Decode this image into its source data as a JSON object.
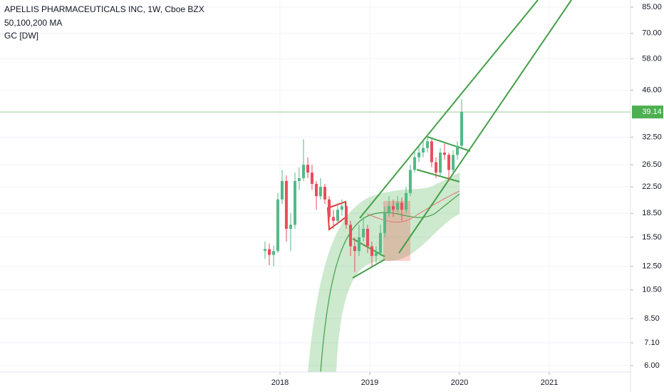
{
  "chart_data": {
    "type": "candlestick",
    "title": "APELLIS PHARMACEUTICALS INC, 1W, Cboe BZX",
    "indicators": [
      "50,100,200 MA",
      "GC [DW]"
    ],
    "log_scale": true,
    "grid": true,
    "up_color": "#53b987",
    "down_color": "#eb4d5c",
    "xlim": [
      2014.881,
      2021.905
    ],
    "xticks": [
      2018,
      2019,
      2020,
      2021
    ],
    "ylim": [
      5.72,
      89.6
    ],
    "yticks": [
      {
        "value": 85,
        "label": "85.00"
      },
      {
        "value": 70,
        "label": "70.00"
      },
      {
        "value": 58,
        "label": "58.00"
      },
      {
        "value": 46,
        "label": "46.00"
      },
      {
        "value": 32.5,
        "label": "32.50"
      },
      {
        "value": 26.5,
        "label": "26.50"
      },
      {
        "value": 22.5,
        "label": "22.50"
      },
      {
        "value": 18.5,
        "label": "18.50"
      },
      {
        "value": 15.5,
        "label": "15.50"
      },
      {
        "value": 12.5,
        "label": "12.50"
      },
      {
        "value": 10.5,
        "label": "10.50"
      },
      {
        "value": 8.5,
        "label": "8.50"
      },
      {
        "value": 7.1,
        "label": "7.10"
      },
      {
        "value": 6,
        "label": "6.00"
      }
    ],
    "last_price": 39.14,
    "x": [
      2017.833,
      2017.881,
      2017.929,
      2017.976,
      2018.024,
      2018.071,
      2018.119,
      2018.167,
      2018.214,
      2018.262,
      2018.31,
      2018.357,
      2018.405,
      2018.452,
      2018.5,
      2018.548,
      2018.595,
      2018.643,
      2018.69,
      2018.738,
      2018.786,
      2018.833,
      2018.881,
      2018.929,
      2018.976,
      2019.024,
      2019.071,
      2019.119,
      2019.167,
      2019.214,
      2019.262,
      2019.31,
      2019.357,
      2019.405,
      2019.452,
      2019.5,
      2019.548,
      2019.595,
      2019.643,
      2019.69,
      2019.738,
      2019.786,
      2019.833,
      2019.881,
      2019.929,
      2019.976,
      2020.024
    ],
    "open": [
      14,
      14.2,
      13.6,
      14,
      20.5,
      23.5,
      16.5,
      17,
      23.5,
      24,
      26.5,
      25,
      23,
      21,
      22.5,
      20.5,
      18,
      17.5,
      19,
      19.5,
      17,
      14.5,
      14,
      15.5,
      16.5,
      14.5,
      13.5,
      13.8,
      16,
      18.5,
      19.5,
      19,
      20,
      19,
      21.5,
      25.5,
      28,
      29,
      30,
      31.5,
      27,
      25,
      29,
      28.5,
      25.5,
      28.5,
      30.5
    ],
    "high": [
      15,
      14.8,
      14.6,
      21.5,
      25.5,
      24.5,
      18.5,
      25,
      26,
      32,
      28,
      26.5,
      23.5,
      24,
      23,
      21,
      19,
      20,
      20.5,
      20,
      17.5,
      15.5,
      17,
      18,
      17,
      15,
      14.5,
      17,
      19.5,
      21,
      20.5,
      21,
      20.8,
      22.5,
      26.5,
      29.5,
      30.5,
      31.5,
      33,
      32,
      28,
      30,
      31,
      29,
      29.5,
      31.5,
      43
    ],
    "low": [
      13.2,
      12.6,
      12.5,
      13.8,
      19.8,
      15,
      14,
      16.5,
      22,
      23.5,
      24,
      22,
      19,
      20.5,
      19.8,
      17,
      16.5,
      17,
      18.2,
      16.5,
      13.5,
      12,
      13.5,
      15,
      13.8,
      12.5,
      12.8,
      13.5,
      15.5,
      18,
      18,
      18.5,
      17.5,
      18.5,
      21,
      25,
      27,
      28,
      29,
      26,
      24,
      24.5,
      27.5,
      23.5,
      25,
      27.5,
      30
    ],
    "close": [
      14.2,
      13.6,
      14,
      20.5,
      23.5,
      16.5,
      17,
      23.5,
      24,
      26.5,
      25,
      23,
      21,
      22.5,
      20.5,
      18,
      17.5,
      19,
      19.5,
      17,
      14.5,
      14,
      15.5,
      16.5,
      14.5,
      13.5,
      13.8,
      16,
      18.5,
      19.5,
      19,
      20,
      19,
      21.5,
      25.5,
      28,
      29,
      30,
      31.5,
      27,
      25,
      29,
      28.5,
      25.5,
      28.5,
      30.5,
      39.14
    ]
  }
}
